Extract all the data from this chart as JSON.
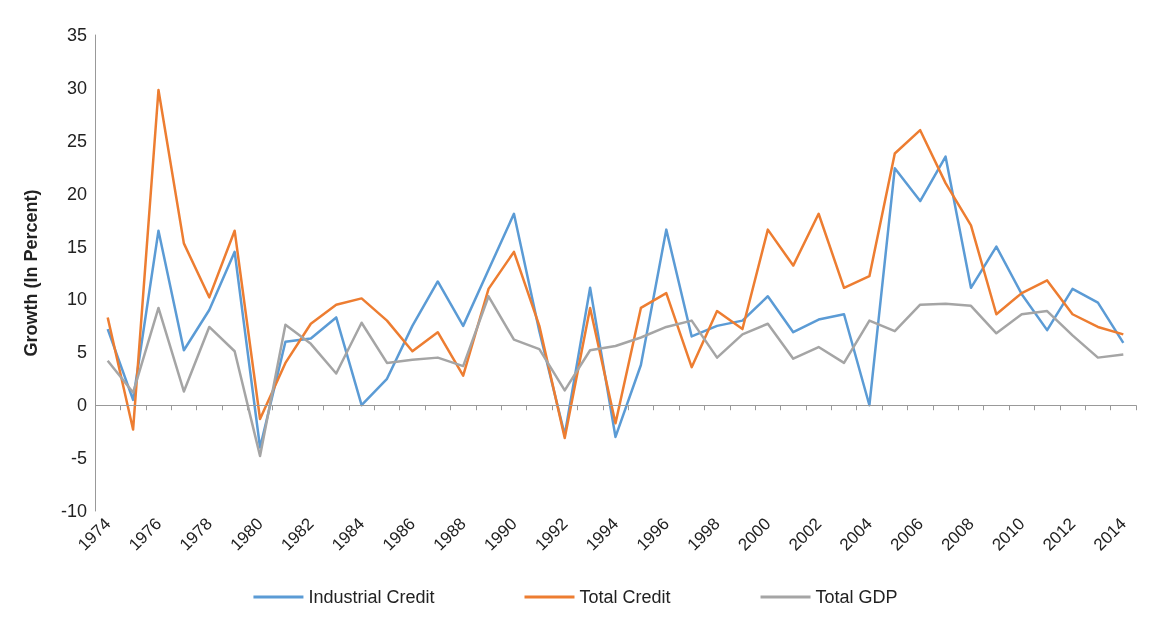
{
  "chart_data": {
    "type": "line",
    "ylabel": "Growth (In Percent)",
    "categories": [
      "1974",
      null,
      "1976",
      null,
      "1978",
      null,
      "1980",
      null,
      "1982",
      null,
      "1984",
      null,
      "1986",
      null,
      "1988",
      null,
      "1990",
      null,
      "1992",
      null,
      "1994",
      null,
      "1996",
      null,
      "1998",
      null,
      "2000",
      null,
      "2002",
      null,
      "2004",
      null,
      "2006",
      null,
      "2008",
      null,
      "2010",
      null,
      "2012",
      null,
      "2014"
    ],
    "series": [
      {
        "name": "Industrial Credit",
        "color": "#5b9bd5",
        "values": [
          7.2,
          0.5,
          16.5,
          5.2,
          9,
          14.5,
          -4,
          6,
          6.3,
          8.3,
          0,
          2.5,
          7.5,
          11.7,
          7.5,
          12.8,
          18.1,
          7,
          -2.8,
          11.1,
          -3,
          3.8,
          16.6,
          6.5,
          7.5,
          8,
          10.3,
          6.9,
          8.1,
          8.6,
          0,
          22.4,
          19.3,
          23.5,
          11.1,
          15,
          10.5,
          7.1,
          11,
          9.7,
          5.9
        ]
      },
      {
        "name": "Total Credit",
        "color": "#ed7d31",
        "values": [
          8.3,
          -2.3,
          29.8,
          15.3,
          10.2,
          16.5,
          -1.3,
          4,
          7.7,
          9.5,
          10.1,
          8,
          5.1,
          6.9,
          2.8,
          11,
          14.5,
          7.5,
          -3.1,
          9.2,
          -1.7,
          9.2,
          10.6,
          3.6,
          8.9,
          7.2,
          16.6,
          13.2,
          18.1,
          11.1,
          12.2,
          23.8,
          26,
          21,
          17,
          8.6,
          10.6,
          11.8,
          8.6,
          7.4,
          6.7
        ]
      },
      {
        "name": "Total GDP",
        "color": "#a5a5a5",
        "values": [
          4.2,
          1.2,
          9.2,
          1.3,
          7.4,
          5.1,
          -4.8,
          7.6,
          5.8,
          3,
          7.8,
          4,
          4.3,
          4.5,
          3.7,
          10.3,
          6.2,
          5.3,
          1.4,
          5.2,
          5.6,
          6.4,
          7.4,
          8,
          4.5,
          6.7,
          7.7,
          4.4,
          5.5,
          4,
          8,
          7,
          9.5,
          9.6,
          9.4,
          6.8,
          8.6,
          8.9,
          6.6,
          4.5,
          4.8
        ]
      }
    ],
    "ylim": [
      -10,
      35
    ],
    "yticks": [
      -10,
      -5,
      0,
      5,
      10,
      15,
      20,
      25,
      30,
      35
    ],
    "ref_lines": [
      {
        "axis": "y",
        "value": 0,
        "color": "#999999"
      }
    ],
    "grid": false,
    "legend": "bottom",
    "marker": "none",
    "line_style": "solid"
  }
}
